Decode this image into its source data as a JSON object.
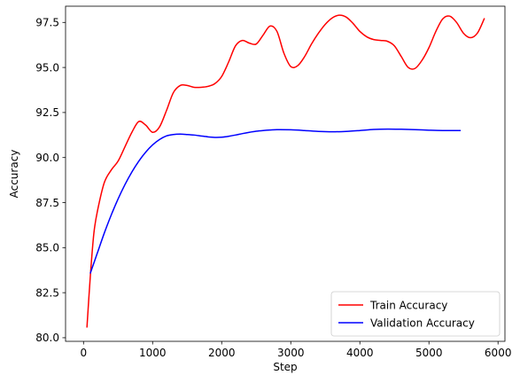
{
  "chart_data": {
    "type": "line",
    "xlabel": "Step",
    "ylabel": "Accuracy",
    "xlim": [
      -260,
      6100
    ],
    "ylim": [
      79.8,
      98.4
    ],
    "xticks": [
      0,
      1000,
      2000,
      3000,
      4000,
      5000,
      6000
    ],
    "xtick_labels": [
      "0",
      "1000",
      "2000",
      "3000",
      "4000",
      "5000",
      "6000"
    ],
    "yticks": [
      80.0,
      82.5,
      85.0,
      87.5,
      90.0,
      92.5,
      95.0,
      97.5
    ],
    "ytick_labels": [
      "80.0",
      "82.5",
      "85.0",
      "87.5",
      "90.0",
      "92.5",
      "95.0",
      "97.5"
    ],
    "grid": false,
    "legend_position": "lower-right",
    "series": [
      {
        "name": "Train Accuracy",
        "color": "#ff0000",
        "x": [
          50,
          100,
          150,
          200,
          300,
          400,
          500,
          600,
          700,
          800,
          900,
          1000,
          1100,
          1200,
          1300,
          1400,
          1500,
          1600,
          1700,
          1800,
          1900,
          2000,
          2100,
          2200,
          2300,
          2400,
          2500,
          2600,
          2700,
          2800,
          2900,
          3000,
          3100,
          3200,
          3300,
          3400,
          3500,
          3600,
          3700,
          3800,
          3900,
          4000,
          4100,
          4200,
          4300,
          4400,
          4500,
          4600,
          4700,
          4800,
          4900,
          5000,
          5100,
          5200,
          5300,
          5400,
          5500,
          5600,
          5700,
          5800
        ],
        "y": [
          80.6,
          83.5,
          85.8,
          87.0,
          88.6,
          89.3,
          89.8,
          90.6,
          91.4,
          92.0,
          91.8,
          91.4,
          91.7,
          92.6,
          93.6,
          94.0,
          94.0,
          93.9,
          93.9,
          93.95,
          94.1,
          94.5,
          95.3,
          96.2,
          96.5,
          96.35,
          96.3,
          96.8,
          97.3,
          97.0,
          95.8,
          95.05,
          95.1,
          95.6,
          96.3,
          96.9,
          97.4,
          97.75,
          97.9,
          97.8,
          97.45,
          97.0,
          96.7,
          96.55,
          96.5,
          96.45,
          96.2,
          95.6,
          95.0,
          94.95,
          95.4,
          96.1,
          97.0,
          97.7,
          97.85,
          97.5,
          96.9,
          96.65,
          96.9,
          97.7
        ]
      },
      {
        "name": "Validation Accuracy",
        "color": "#0000ff",
        "x": [
          100,
          200,
          300,
          400,
          500,
          600,
          700,
          800,
          900,
          1000,
          1100,
          1200,
          1300,
          1400,
          1500,
          1600,
          1700,
          1800,
          1900,
          2000,
          2100,
          2200,
          2300,
          2400,
          2500,
          2600,
          2700,
          2800,
          3000,
          3200,
          3400,
          3600,
          3800,
          4000,
          4200,
          4400,
          4600,
          4800,
          5000,
          5200,
          5450
        ],
        "y": [
          83.6,
          84.7,
          85.8,
          86.8,
          87.7,
          88.5,
          89.2,
          89.8,
          90.3,
          90.7,
          91.0,
          91.2,
          91.28,
          91.3,
          91.28,
          91.25,
          91.2,
          91.15,
          91.12,
          91.13,
          91.18,
          91.25,
          91.33,
          91.4,
          91.46,
          91.5,
          91.53,
          91.55,
          91.54,
          91.5,
          91.45,
          91.43,
          91.45,
          91.5,
          91.56,
          91.58,
          91.57,
          91.55,
          91.52,
          91.5,
          91.5
        ]
      }
    ]
  }
}
